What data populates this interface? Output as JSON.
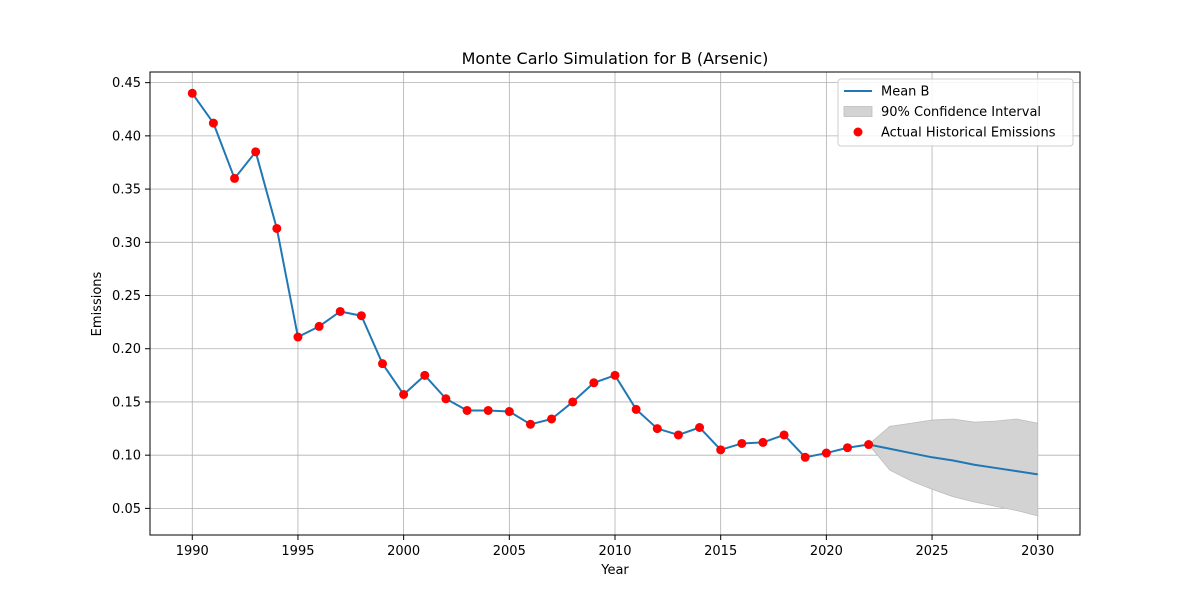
{
  "chart_data": {
    "type": "line",
    "title": "Monte Carlo Simulation for B (Arsenic)",
    "xlabel": "Year",
    "ylabel": "Emissions",
    "xlim": [
      1988,
      2032
    ],
    "ylim": [
      0.025,
      0.46
    ],
    "x_ticks": [
      1990,
      1995,
      2000,
      2005,
      2010,
      2015,
      2020,
      2025,
      2030
    ],
    "y_ticks": [
      0.05,
      0.1,
      0.15,
      0.2,
      0.25,
      0.3,
      0.35,
      0.4,
      0.45
    ],
    "grid": true,
    "legend_position": "top-right",
    "colors": {
      "mean_line": "#1f77b4",
      "confidence_fill": "#d3d3d3",
      "confidence_edge": "#bdbdbd",
      "historical_points": "#ff0000",
      "grid": "#b0b0b0"
    },
    "legend": [
      {
        "label": "Mean B",
        "kind": "line"
      },
      {
        "label": "90% Confidence Interval",
        "kind": "patch"
      },
      {
        "label": "Actual Historical Emissions",
        "kind": "marker"
      }
    ],
    "series": [
      {
        "name": "Mean B",
        "x": [
          1990,
          1991,
          1992,
          1993,
          1994,
          1995,
          1996,
          1997,
          1998,
          1999,
          2000,
          2001,
          2002,
          2003,
          2004,
          2005,
          2006,
          2007,
          2008,
          2009,
          2010,
          2011,
          2012,
          2013,
          2014,
          2015,
          2016,
          2017,
          2018,
          2019,
          2020,
          2021,
          2022,
          2023,
          2024,
          2025,
          2026,
          2027,
          2028,
          2029,
          2030
        ],
        "y": [
          0.44,
          0.412,
          0.36,
          0.385,
          0.313,
          0.211,
          0.221,
          0.235,
          0.231,
          0.186,
          0.157,
          0.175,
          0.153,
          0.142,
          0.142,
          0.141,
          0.129,
          0.134,
          0.15,
          0.168,
          0.175,
          0.143,
          0.125,
          0.119,
          0.126,
          0.105,
          0.111,
          0.112,
          0.119,
          0.098,
          0.102,
          0.107,
          0.11,
          0.106,
          0.102,
          0.098,
          0.095,
          0.091,
          0.088,
          0.085,
          0.082
        ]
      },
      {
        "name": "90% Confidence Interval",
        "x": [
          2022,
          2023,
          2024,
          2025,
          2026,
          2027,
          2028,
          2029,
          2030
        ],
        "lower": [
          0.11,
          0.086,
          0.076,
          0.068,
          0.061,
          0.056,
          0.052,
          0.048,
          0.043
        ],
        "upper": [
          0.11,
          0.127,
          0.13,
          0.133,
          0.134,
          0.131,
          0.132,
          0.134,
          0.13
        ]
      },
      {
        "name": "Actual Historical Emissions",
        "x": [
          1990,
          1991,
          1992,
          1993,
          1994,
          1995,
          1996,
          1997,
          1998,
          1999,
          2000,
          2001,
          2002,
          2003,
          2004,
          2005,
          2006,
          2007,
          2008,
          2009,
          2010,
          2011,
          2012,
          2013,
          2014,
          2015,
          2016,
          2017,
          2018,
          2019,
          2020,
          2021,
          2022
        ],
        "y": [
          0.44,
          0.412,
          0.36,
          0.385,
          0.313,
          0.211,
          0.221,
          0.235,
          0.231,
          0.186,
          0.157,
          0.175,
          0.153,
          0.142,
          0.142,
          0.141,
          0.129,
          0.134,
          0.15,
          0.168,
          0.175,
          0.143,
          0.125,
          0.119,
          0.126,
          0.105,
          0.111,
          0.112,
          0.119,
          0.098,
          0.102,
          0.107,
          0.11
        ]
      }
    ]
  }
}
